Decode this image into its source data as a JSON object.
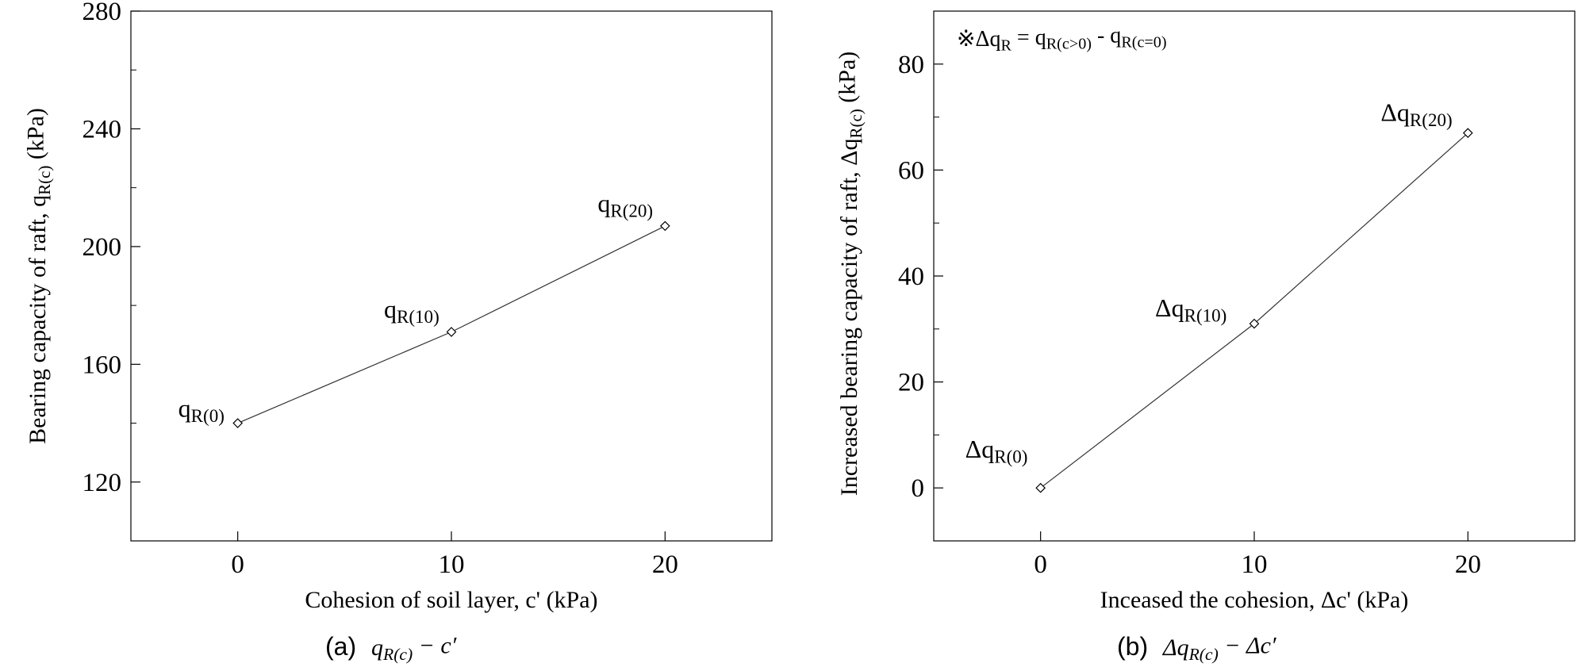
{
  "chart_data": [
    {
      "type": "line",
      "panel": "a",
      "caption_label": "(a)",
      "caption_expr": "q_{R(c)} − c′",
      "xlabel": "Cohesion of soil layer, c' (kPa)",
      "ylabel": "Bearing capacity of raft, q_{R(c)} (kPa)",
      "xlim": [
        -5,
        25
      ],
      "ylim": [
        100,
        280
      ],
      "xticks": [
        0,
        10,
        20
      ],
      "yticks": [
        120,
        160,
        200,
        240,
        280
      ],
      "grid": false,
      "series": [
        {
          "x": [
            0,
            10,
            20
          ],
          "values": [
            140,
            171,
            207
          ],
          "marker": "diamond",
          "point_labels": [
            "q_{R(0)}",
            "q_{R(10)}",
            "q_{R(20)}"
          ]
        }
      ]
    },
    {
      "type": "line",
      "panel": "b",
      "caption_label": "(b)",
      "caption_expr": "Δq_{R(c)} − Δc′",
      "xlabel": "Inceased the cohesion, Δc' (kPa)",
      "ylabel": "Increased bearing capacity of raft, Δq_{R(c)} (kPa)",
      "annotation": "※Δq_R = q_{R(c>0)} - q_{R(c=0)}",
      "xlim": [
        -5,
        25
      ],
      "ylim": [
        -10,
        90
      ],
      "xticks": [
        0,
        10,
        20
      ],
      "yticks": [
        0,
        20,
        40,
        60,
        80
      ],
      "grid": false,
      "series": [
        {
          "x": [
            0,
            10,
            20
          ],
          "values": [
            0,
            31,
            67
          ],
          "marker": "diamond",
          "point_labels": [
            "Δq_{R(0)}",
            "Δq_{R(10)}",
            "Δq_{R(20)}"
          ]
        }
      ]
    }
  ]
}
